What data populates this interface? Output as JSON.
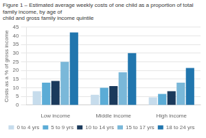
{
  "chart_data": {
    "type": "bar",
    "title": [
      "Figure 1 – Estimated average weekly costs of one child as a proportion of total family income, by age of",
      "child and gross family income quintile"
    ],
    "ylabel": "Costs as a % of gross income",
    "categories": [
      "Low income",
      "Middle income",
      "High income"
    ],
    "series": [
      {
        "name": "0 to 4 yrs",
        "color": "#c6dcec",
        "values": [
          8,
          6,
          4.5
        ]
      },
      {
        "name": "5 to 9 yrs",
        "color": "#5bacd6",
        "values": [
          13,
          10,
          6.5
        ]
      },
      {
        "name": "10 to 14 yrs",
        "color": "#1a3a5c",
        "values": [
          14,
          11,
          8
        ]
      },
      {
        "name": "15 to 17 yrs",
        "color": "#7ab8d9",
        "values": [
          25,
          19,
          13
        ]
      },
      {
        "name": "18 to 24 yrs",
        "color": "#2176ae",
        "values": [
          42,
          30,
          21.5
        ]
      }
    ],
    "ylim": [
      0,
      45
    ],
    "yticks": [
      0,
      5,
      10,
      15,
      20,
      25,
      30,
      35,
      40,
      45
    ],
    "grid": true,
    "legend": "bottom"
  }
}
